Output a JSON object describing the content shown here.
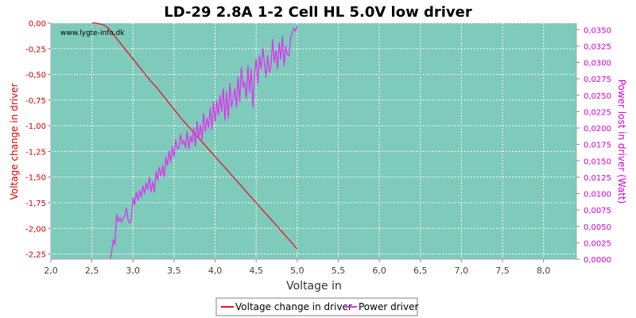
{
  "chart_data": {
    "type": "line",
    "title": "LD-29 2.8A 1-2 Cell HL 5.0V low driver",
    "xlabel": "Voltage in",
    "ylabel_left": "Voltage change in driver",
    "ylabel_right": "Power lost in driver (Watt)",
    "watermark": "www.lygte-info.dk",
    "xlim": [
      2.0,
      8.4
    ],
    "ylim_left": [
      -2.3,
      0.0
    ],
    "ylim_right": [
      0.0,
      0.036
    ],
    "xticks": [
      "2,0",
      "2,5",
      "3,0",
      "3,5",
      "4,0",
      "4,5",
      "5,0",
      "5,5",
      "6,0",
      "6,5",
      "7,0",
      "7,5",
      "8,0"
    ],
    "yticks_left": [
      "0,00",
      "-0,25",
      "-0,50",
      "-0,75",
      "-1,00",
      "-1,25",
      "-1,50",
      "-1,75",
      "-2,00",
      "-2,25"
    ],
    "yticks_right": [
      "0,0350",
      "0,0325",
      "0,0300",
      "0,0275",
      "0,0250",
      "0,0225",
      "0,0200",
      "0,0175",
      "0,0150",
      "0,0125",
      "0,0100",
      "0,0075",
      "0,0050",
      "0,0025",
      "0,0000"
    ],
    "grid": true,
    "legend_position": "bottom",
    "colors": {
      "plot_bg": "#7ecabb",
      "grid": "#ffffff",
      "voltage": "#e8141e",
      "power": "#dd33ee",
      "left_axis": "#d40000",
      "right_axis": "#d400d4"
    },
    "series": [
      {
        "name": "Voltage change in driver",
        "axis": "left",
        "x": [
          2.5,
          2.55,
          2.6,
          2.65,
          2.7,
          2.8,
          2.9,
          3.0,
          3.1,
          3.2,
          3.3,
          3.4,
          3.5,
          3.6,
          3.7,
          3.8,
          3.9,
          4.0,
          4.1,
          4.2,
          4.3,
          4.4,
          4.5,
          4.6,
          4.7,
          4.8,
          4.9,
          5.0
        ],
        "values": [
          0.0,
          0.0,
          -0.01,
          -0.02,
          -0.05,
          -0.15,
          -0.25,
          -0.35,
          -0.45,
          -0.55,
          -0.64,
          -0.74,
          -0.84,
          -0.94,
          -1.03,
          -1.12,
          -1.21,
          -1.3,
          -1.39,
          -1.48,
          -1.57,
          -1.66,
          -1.75,
          -1.84,
          -1.93,
          -2.02,
          -2.11,
          -2.2
        ]
      },
      {
        "name": "Power driver",
        "axis": "right",
        "x": [
          2.72,
          2.74,
          2.76,
          2.78,
          2.8,
          2.82,
          2.84,
          2.86,
          2.88,
          2.9,
          2.92,
          2.94,
          2.96,
          2.98,
          3.0,
          3.02,
          3.04,
          3.06,
          3.08,
          3.1,
          3.12,
          3.14,
          3.16,
          3.18,
          3.2,
          3.22,
          3.24,
          3.26,
          3.28,
          3.3,
          3.32,
          3.34,
          3.36,
          3.38,
          3.4,
          3.42,
          3.44,
          3.46,
          3.48,
          3.5,
          3.52,
          3.54,
          3.56,
          3.58,
          3.6,
          3.62,
          3.64,
          3.66,
          3.68,
          3.7,
          3.72,
          3.74,
          3.76,
          3.78,
          3.8,
          3.82,
          3.84,
          3.86,
          3.88,
          3.9,
          3.92,
          3.94,
          3.96,
          3.98,
          4.0,
          4.02,
          4.04,
          4.06,
          4.08,
          4.1,
          4.12,
          4.14,
          4.16,
          4.18,
          4.2,
          4.22,
          4.24,
          4.26,
          4.28,
          4.3,
          4.32,
          4.34,
          4.36,
          4.38,
          4.4,
          4.42,
          4.44,
          4.46,
          4.48,
          4.5,
          4.52,
          4.54,
          4.56,
          4.58,
          4.6,
          4.62,
          4.64,
          4.66,
          4.68,
          4.7,
          4.72,
          4.74,
          4.76,
          4.78,
          4.8,
          4.82,
          4.84,
          4.86,
          4.88,
          4.9,
          4.92,
          4.94,
          4.96,
          4.98,
          5.0
        ],
        "values": [
          0.0,
          0.001,
          0.003,
          0.0022,
          0.0068,
          0.0057,
          0.0064,
          0.0056,
          0.0063,
          0.0066,
          0.0078,
          0.006,
          0.0055,
          0.006,
          0.0093,
          0.0083,
          0.0102,
          0.009,
          0.0105,
          0.0095,
          0.0112,
          0.01,
          0.0116,
          0.0106,
          0.0125,
          0.0103,
          0.0118,
          0.0102,
          0.0134,
          0.012,
          0.014,
          0.0127,
          0.0143,
          0.0125,
          0.0155,
          0.0143,
          0.0165,
          0.0148,
          0.0172,
          0.0156,
          0.0182,
          0.0168,
          0.017,
          0.019,
          0.0175,
          0.0181,
          0.017,
          0.0195,
          0.0168,
          0.0188,
          0.0178,
          0.02,
          0.0172,
          0.021,
          0.0185,
          0.0205,
          0.0182,
          0.0222,
          0.0195,
          0.0215,
          0.02,
          0.023,
          0.0198,
          0.024,
          0.021,
          0.0242,
          0.022,
          0.025,
          0.0225,
          0.026,
          0.0212,
          0.0255,
          0.0215,
          0.0268,
          0.0232,
          0.0245,
          0.026,
          0.0232,
          0.0278,
          0.024,
          0.0292,
          0.0262,
          0.027,
          0.0245,
          0.0295,
          0.0255,
          0.029,
          0.0232,
          0.028,
          0.0305,
          0.0268,
          0.031,
          0.029,
          0.0322,
          0.03,
          0.0278,
          0.031,
          0.0285,
          0.0295,
          0.0335,
          0.03,
          0.0318,
          0.029,
          0.033,
          0.0305,
          0.034,
          0.0295,
          0.0325,
          0.0312,
          0.031,
          0.0338,
          0.0345,
          0.0352,
          0.0348,
          0.0355
        ]
      }
    ]
  }
}
